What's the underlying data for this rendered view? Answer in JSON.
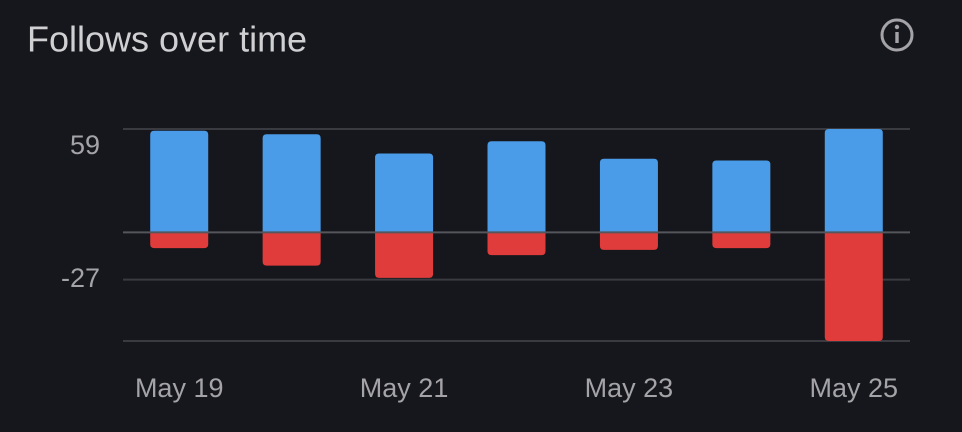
{
  "chart_data": {
    "type": "bar",
    "title": "Follows over time",
    "categories": [
      "May 19",
      null,
      "May 21",
      null,
      "May 23",
      null,
      "May 25"
    ],
    "series": [
      {
        "color": "#4a9be8",
        "values": [
          58,
          56,
          45,
          52,
          42,
          41,
          59
        ]
      },
      {
        "color": "#e03c3c",
        "values": [
          -9,
          -19,
          -26,
          -13,
          -10,
          -9,
          -62
        ]
      }
    ],
    "ylim": [
      -62,
      59
    ],
    "yticks": [
      59,
      -27
    ],
    "grid": true
  }
}
